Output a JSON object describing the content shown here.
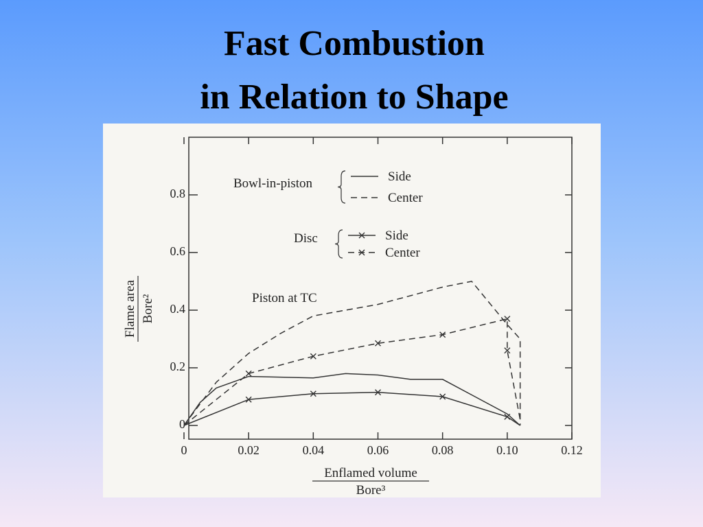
{
  "title_lines": [
    "Fast Combustion",
    "in Relation to Shape"
  ],
  "chart_data": {
    "type": "line",
    "x_label": {
      "numerator": "Enflamed volume",
      "denominator": "Bore³"
    },
    "y_label": {
      "numerator": "Flame area",
      "denominator": "Bore²"
    },
    "annotation": "Piston at TC",
    "xlim": [
      0,
      0.12
    ],
    "ylim": [
      0,
      1
    ],
    "xticks": [
      0,
      0.02,
      0.04,
      0.06,
      0.08,
      {
        "value": 0.1,
        "label": "0.10"
      },
      0.12
    ],
    "yticks": [
      0,
      0.2,
      0.4,
      0.6,
      0.8
    ],
    "series_groups": [
      {
        "name": "Bowl-in-piston",
        "series": [
          {
            "name": "Side",
            "color": "#333333",
            "style": "solid",
            "marker": "none",
            "x": [
              0,
              0.005,
              0.01,
              0.02,
              0.04,
              0.05,
              0.06,
              0.07,
              0.08,
              0.09,
              0.1,
              0.104
            ],
            "values": [
              0,
              0.08,
              0.13,
              0.17,
              0.165,
              0.18,
              0.175,
              0.16,
              0.16,
              0.1,
              0.04,
              0
            ]
          },
          {
            "name": "Center",
            "color": "#333333",
            "style": "dashed",
            "marker": "none",
            "x": [
              0,
              0.01,
              0.02,
              0.03,
              0.04,
              0.06,
              0.08,
              0.089,
              0.1,
              0.104,
              0.104
            ],
            "values": [
              0,
              0.15,
              0.25,
              0.32,
              0.38,
              0.42,
              0.48,
              0.5,
              0.35,
              0.3,
              0
            ]
          }
        ]
      },
      {
        "name": "Disc",
        "series": [
          {
            "name": "Side",
            "color": "#333333",
            "style": "solid",
            "marker": "x",
            "x": [
              0,
              0.02,
              0.04,
              0.06,
              0.08,
              0.1,
              0.104
            ],
            "values": [
              0,
              0.09,
              0.11,
              0.115,
              0.1,
              0.03,
              0
            ]
          },
          {
            "name": "Center",
            "color": "#333333",
            "style": "dashed",
            "marker": "x",
            "x": [
              0,
              0.02,
              0.04,
              0.06,
              0.08,
              0.1,
              0.1,
              0.104
            ],
            "values": [
              0,
              0.18,
              0.24,
              0.285,
              0.315,
              0.37,
              0.26,
              0.02
            ]
          }
        ]
      }
    ]
  }
}
